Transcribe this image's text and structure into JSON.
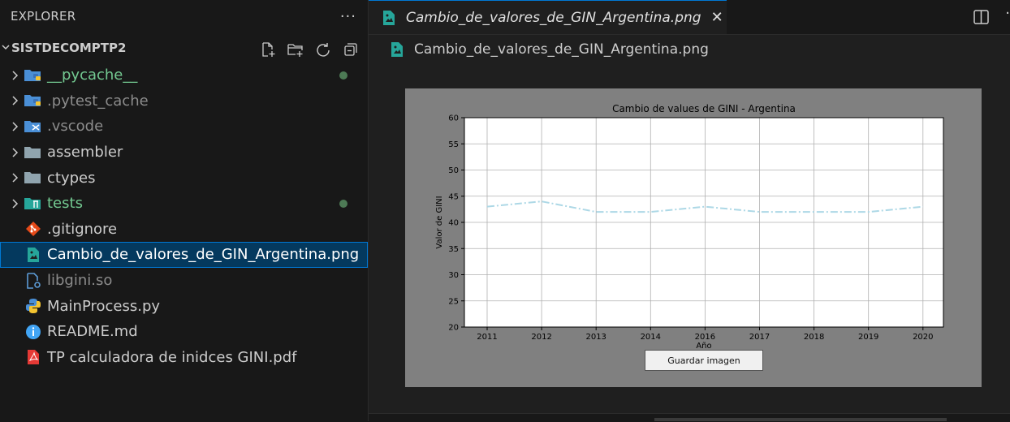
{
  "sidebar": {
    "header": "EXPLORER",
    "more": "···",
    "folder": "SISTDECOMPTP2",
    "items": [
      {
        "label": "__pycache__",
        "kind": "folder",
        "icon": "python-folder-icon",
        "style": "green",
        "dot": true
      },
      {
        "label": ".pytest_cache",
        "kind": "folder",
        "icon": "python-folder-icon",
        "style": "dim",
        "dot": false
      },
      {
        "label": ".vscode",
        "kind": "folder",
        "icon": "vscode-folder-icon",
        "style": "dim",
        "dot": false
      },
      {
        "label": "assembler",
        "kind": "folder",
        "icon": "folder-icon",
        "style": "",
        "dot": false
      },
      {
        "label": "ctypes",
        "kind": "folder",
        "icon": "folder-icon",
        "style": "",
        "dot": false
      },
      {
        "label": "tests",
        "kind": "folder",
        "icon": "test-folder-icon",
        "style": "green",
        "dot": true
      },
      {
        "label": ".gitignore",
        "kind": "file",
        "icon": "git-icon",
        "style": "",
        "dot": false
      },
      {
        "label": "Cambio_de_valores_de_GIN_Argentina.png",
        "kind": "file",
        "icon": "image-file-icon",
        "style": "",
        "dot": false,
        "selected": true
      },
      {
        "label": "libgini.so",
        "kind": "file",
        "icon": "binary-file-icon",
        "style": "dim",
        "dot": false
      },
      {
        "label": "MainProcess.py",
        "kind": "file",
        "icon": "python-icon",
        "style": "",
        "dot": false
      },
      {
        "label": "README.md",
        "kind": "file",
        "icon": "info-icon",
        "style": "",
        "dot": false
      },
      {
        "label": "TP calculadora de inidces GINI.pdf",
        "kind": "file",
        "icon": "pdf-icon",
        "style": "",
        "dot": false
      }
    ]
  },
  "tab": {
    "label": "Cambio_de_valores_de_GIN_Argentina.png",
    "close": "✕"
  },
  "breadcrumb": {
    "label": "Cambio_de_valores_de_GIN_Argentina.png"
  },
  "image": {
    "save_button": "Guardar imagen"
  },
  "colors": {
    "accent": "#0078d4",
    "selected_bg": "#04395e",
    "line": "#add8e6",
    "git_green": "#73c991"
  },
  "chart_data": {
    "type": "line",
    "title": "Cambio de values de GINI - Argentina",
    "xlabel": "Año",
    "ylabel": "Valor de GINI",
    "categories": [
      "2011",
      "2012",
      "2013",
      "2014",
      "2016",
      "2017",
      "2018",
      "2019",
      "2020"
    ],
    "series": [
      {
        "values": [
          43,
          44,
          42,
          42,
          43,
          42,
          42,
          42,
          43
        ]
      }
    ],
    "ylim": [
      20,
      60
    ],
    "yticks": [
      "20",
      "25",
      "30",
      "35",
      "40",
      "45",
      "50",
      "55",
      "60"
    ],
    "grid": true,
    "line_style": "dash-dot"
  }
}
